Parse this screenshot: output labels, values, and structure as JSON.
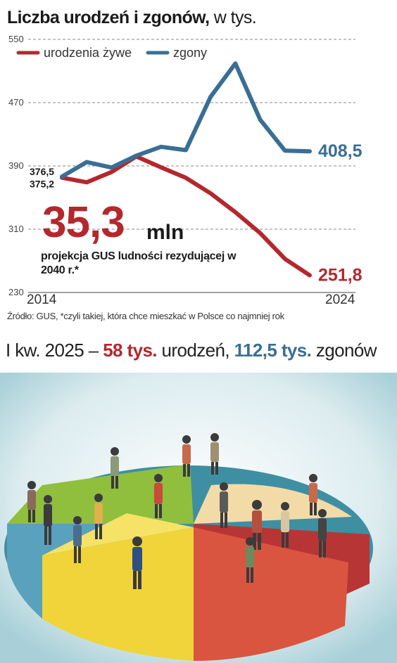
{
  "title": {
    "bold": "Liczba urodzeń i zgonów,",
    "normal": " w tys."
  },
  "chart_data": {
    "type": "line",
    "x": [
      2014,
      2015,
      2016,
      2017,
      2018,
      2019,
      2020,
      2021,
      2022,
      2023,
      2024
    ],
    "xticks": [
      "2014",
      "2024"
    ],
    "yticks": [
      "230",
      "310",
      "390",
      "470",
      "550"
    ],
    "ylim": [
      230,
      550
    ],
    "grid": true,
    "legend_position": "top-left",
    "series": [
      {
        "name": "urodzenia żywe",
        "color": "#b3282d",
        "values": [
          375.2,
          369.3,
          382.3,
          402.0,
          388.2,
          375.0,
          355.3,
          331.5,
          305.1,
          272.5,
          251.8
        ]
      },
      {
        "name": "zgony",
        "color": "#3a6e95",
        "values": [
          376.5,
          394.9,
          388.0,
          403.0,
          414.2,
          410.0,
          477.4,
          519.5,
          448.5,
          409.3,
          408.5
        ]
      }
    ],
    "data_labels": {
      "start_blue": "376,5",
      "start_red": "375,2",
      "end_blue": "408,5",
      "end_red": "251,8"
    }
  },
  "projection": {
    "value": "35,3",
    "unit": "mln",
    "description": "projekcja GUS ludności rezydującej w 2040 r.*"
  },
  "source": "Źródło: GUS, *czyli takiej, która chce mieszkać w Polsce co najmniej rok",
  "summary": {
    "prefix": "I kw. 2025 – ",
    "births_value": "58 tys.",
    "births_text": " urodzeń, ",
    "deaths_value": "112,5 tys.",
    "deaths_text": " zgonów"
  },
  "illustration": {
    "description_icon": "pie-chart-with-figurines",
    "slice_colors": [
      "#7fbf3f",
      "#f4e04d",
      "#e06a4a",
      "#c83a3a",
      "#f2d7a8",
      "#5fa7c0"
    ]
  }
}
